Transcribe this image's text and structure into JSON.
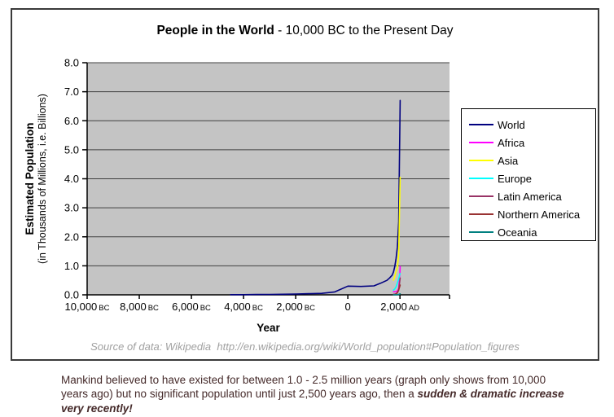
{
  "title": {
    "bold": "People in the World",
    "rest": " - 10,000 BC to the Present Day"
  },
  "y_axis": {
    "title_bold": "Estimated Population",
    "title_sub": "(in Thousands of Millions, i.e. Billions)"
  },
  "source_note": "Source of data: Wikipedia  http://en.wikipedia.org/wiki/World_population#Population_figures",
  "caption": {
    "text": "Mankind believed to have existed for between 1.0 - 2.5 million years (graph only shows from 10,000 years ago) but no significant population until just 2,500 years ago, then a ",
    "emphasis": "sudden & dramatic increase very recently!"
  },
  "colors": {
    "plot_bg": "#c4c4c4",
    "grid": "#404040",
    "axis": "#000000",
    "caption_text": "#452a2a",
    "source_text": "#a0a0a0"
  },
  "chart_data": {
    "type": "line",
    "title": "People in the World - 10,000 BC to the Present Day",
    "xlabel": "Year",
    "ylabel": "Estimated Population (in Thousands of Millions, i.e. Billions)",
    "xlim": [
      -10000,
      3900
    ],
    "ylim": [
      0,
      8
    ],
    "grid": true,
    "legend_position": "right",
    "y_ticks": [
      0,
      1,
      2,
      3,
      4,
      5,
      6,
      7,
      8
    ],
    "x_ticks": [
      {
        "year": -10000,
        "label": "10,000",
        "era": "BC"
      },
      {
        "year": -8000,
        "label": "8,000",
        "era": "BC"
      },
      {
        "year": -6000,
        "label": "6,000",
        "era": "BC"
      },
      {
        "year": -4000,
        "label": "4,000",
        "era": "BC"
      },
      {
        "year": -2000,
        "label": "2,000",
        "era": "BC"
      },
      {
        "year": 0,
        "label": "0",
        "era": ""
      },
      {
        "year": 2000,
        "label": "2,000",
        "era": "AD"
      }
    ],
    "series": [
      {
        "name": "World",
        "color": "#000080",
        "points": [
          [
            -4500,
            0.005
          ],
          [
            -4000,
            0.007
          ],
          [
            -3500,
            0.01
          ],
          [
            -3000,
            0.014
          ],
          [
            -2500,
            0.019
          ],
          [
            -2000,
            0.027
          ],
          [
            -1500,
            0.038
          ],
          [
            -1000,
            0.05
          ],
          [
            -500,
            0.1
          ],
          [
            1,
            0.3
          ],
          [
            500,
            0.29
          ],
          [
            1000,
            0.31
          ],
          [
            1250,
            0.4
          ],
          [
            1500,
            0.5
          ],
          [
            1600,
            0.58
          ],
          [
            1700,
            0.68
          ],
          [
            1750,
            0.79
          ],
          [
            1800,
            0.98
          ],
          [
            1850,
            1.26
          ],
          [
            1900,
            1.65
          ],
          [
            1950,
            2.52
          ],
          [
            1999,
            5.98
          ],
          [
            2008,
            6.7
          ]
        ]
      },
      {
        "name": "Africa",
        "color": "#ff00ff",
        "points": [
          [
            1750,
            0.106
          ],
          [
            1800,
            0.107
          ],
          [
            1850,
            0.111
          ],
          [
            1900,
            0.133
          ],
          [
            1950,
            0.221
          ],
          [
            1999,
            0.767
          ],
          [
            2008,
            0.973
          ]
        ]
      },
      {
        "name": "Asia",
        "color": "#ffff00",
        "points": [
          [
            1750,
            0.502
          ],
          [
            1800,
            0.635
          ],
          [
            1850,
            0.809
          ],
          [
            1900,
            0.947
          ],
          [
            1950,
            1.402
          ],
          [
            1999,
            3.634
          ],
          [
            2008,
            4.054
          ]
        ]
      },
      {
        "name": "Europe",
        "color": "#00ffff",
        "points": [
          [
            1750,
            0.163
          ],
          [
            1800,
            0.203
          ],
          [
            1850,
            0.276
          ],
          [
            1900,
            0.408
          ],
          [
            1950,
            0.547
          ],
          [
            1999,
            0.729
          ],
          [
            2008,
            0.732
          ]
        ]
      },
      {
        "name": "Latin America",
        "color": "#993366",
        "points": [
          [
            1750,
            0.016
          ],
          [
            1800,
            0.024
          ],
          [
            1850,
            0.038
          ],
          [
            1900,
            0.074
          ],
          [
            1950,
            0.167
          ],
          [
            1999,
            0.511
          ],
          [
            2008,
            0.577
          ]
        ]
      },
      {
        "name": "Northern America",
        "color": "#993333",
        "points": [
          [
            1750,
            0.002
          ],
          [
            1800,
            0.007
          ],
          [
            1850,
            0.026
          ],
          [
            1900,
            0.082
          ],
          [
            1950,
            0.172
          ],
          [
            1999,
            0.307
          ],
          [
            2008,
            0.337
          ]
        ]
      },
      {
        "name": "Oceania",
        "color": "#008080",
        "points": [
          [
            1750,
            0.002
          ],
          [
            1800,
            0.002
          ],
          [
            1850,
            0.002
          ],
          [
            1900,
            0.006
          ],
          [
            1950,
            0.013
          ],
          [
            1999,
            0.03
          ],
          [
            2008,
            0.034
          ]
        ]
      }
    ]
  }
}
